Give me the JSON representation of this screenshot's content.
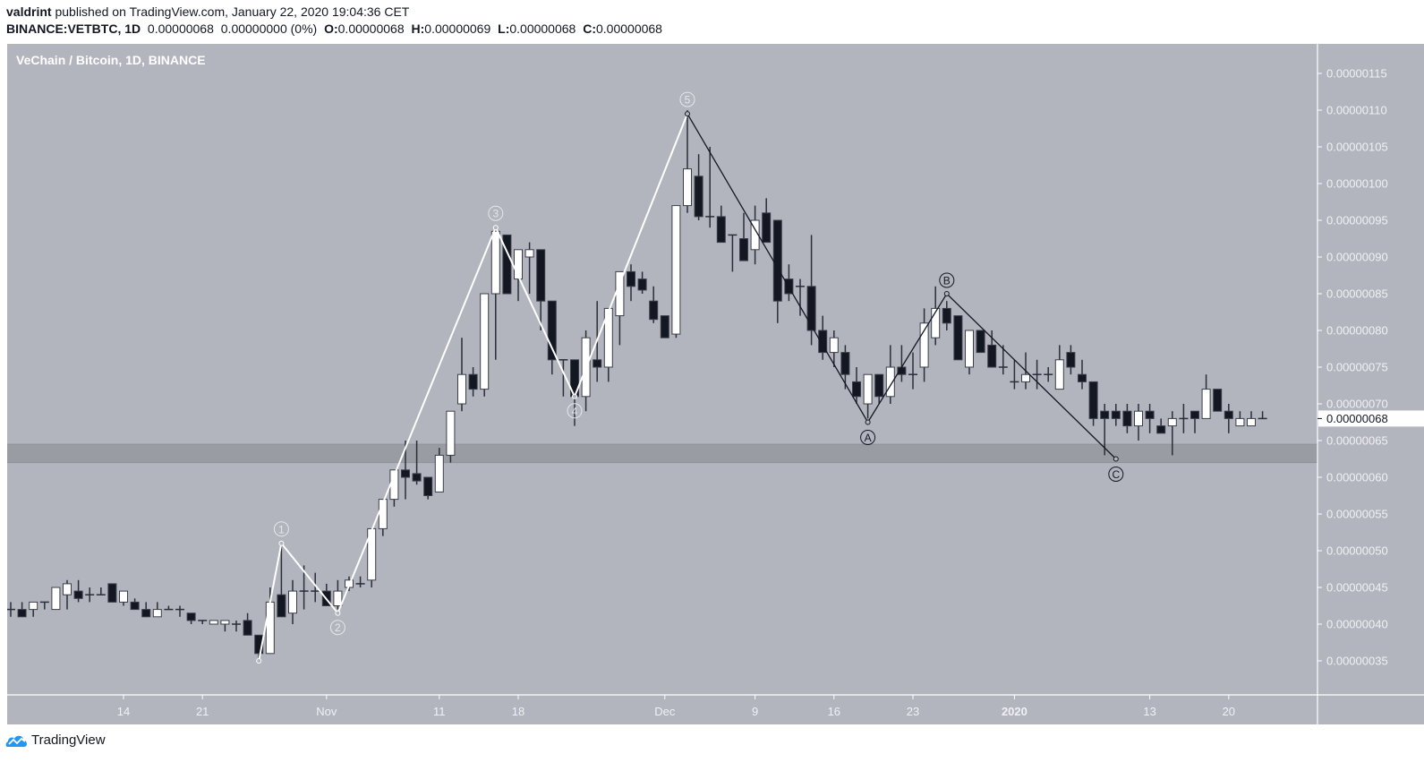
{
  "header": {
    "author": "valdrint",
    "published_text": "published on TradingView.com, January 22, 2020 19:04:36 CET",
    "symbol": "BINANCE:VETBTC, 1D",
    "last": "0.00000068",
    "change": "0.00000000 (0%)",
    "o_label": "O:",
    "o": "0.00000068",
    "h_label": "H:",
    "h": "0.00000069",
    "l_label": "L:",
    "l": "0.00000068",
    "c_label": "C:",
    "c": "0.00000068"
  },
  "chart": {
    "title": "VeChain / Bitcoin, 1D, BINANCE",
    "background": "#b2b5be",
    "up_color": "#ffffff",
    "down_color": "#131722",
    "zone_color": "#9a9ca4",
    "current_price_label": "0.00000068"
  },
  "footer": {
    "brand": "TradingView",
    "logo_color": "#2196f3"
  },
  "chart_data": {
    "type": "candlestick",
    "title": "VeChain / Bitcoin, 1D, BINANCE",
    "symbol": "BINANCE:VETBTC",
    "interval": "1D",
    "price_unit": "1e-8 BTC (satoshi)",
    "y_ticks": [
      "0.00000035",
      "0.00000040",
      "0.00000045",
      "0.00000050",
      "0.00000055",
      "0.00000060",
      "0.00000065",
      "0.00000070",
      "0.00000075",
      "0.00000080",
      "0.00000085",
      "0.00000090",
      "0.00000095",
      "0.00000100",
      "0.00000105",
      "0.00000110",
      "0.00000115"
    ],
    "x_ticks": [
      {
        "label": "14",
        "day": 10
      },
      {
        "label": "21",
        "day": 17
      },
      {
        "label": "Nov",
        "day": 28
      },
      {
        "label": "11",
        "day": 38
      },
      {
        "label": "18",
        "day": 45
      },
      {
        "label": "Dec",
        "day": 58
      },
      {
        "label": "9",
        "day": 66
      },
      {
        "label": "16",
        "day": 73
      },
      {
        "label": "23",
        "day": 80
      },
      {
        "label": "2020",
        "day": 89,
        "bold": true
      },
      {
        "label": "13",
        "day": 101
      },
      {
        "label": "20",
        "day": 108
      }
    ],
    "ylim": [
      31,
      118
    ],
    "support_zone": [
      62,
      64.5
    ],
    "candles": [
      {
        "o": 42,
        "h": 43,
        "l": 41,
        "c": 42
      },
      {
        "o": 42,
        "h": 43,
        "l": 41,
        "c": 41
      },
      {
        "o": 42,
        "h": 43,
        "l": 41,
        "c": 43
      },
      {
        "o": 43,
        "h": 43,
        "l": 42,
        "c": 43
      },
      {
        "o": 42,
        "h": 43,
        "l": 42,
        "c": 45
      },
      {
        "o": 44,
        "h": 46,
        "l": 42,
        "c": 45.5
      },
      {
        "o": 44.5,
        "h": 46,
        "l": 43,
        "c": 43.5
      },
      {
        "o": 44,
        "h": 45,
        "l": 43,
        "c": 44
      },
      {
        "o": 44,
        "h": 45,
        "l": 44,
        "c": 44
      },
      {
        "o": 45.5,
        "h": 45.5,
        "l": 43,
        "c": 43
      },
      {
        "o": 43,
        "h": 44.5,
        "l": 42.5,
        "c": 44.5
      },
      {
        "o": 43,
        "h": 43.5,
        "l": 42,
        "c": 42
      },
      {
        "o": 42,
        "h": 43,
        "l": 41,
        "c": 41
      },
      {
        "o": 41,
        "h": 43,
        "l": 41,
        "c": 42
      },
      {
        "o": 42,
        "h": 42.5,
        "l": 42,
        "c": 42
      },
      {
        "o": 42,
        "h": 42.5,
        "l": 41,
        "c": 42
      },
      {
        "o": 41.5,
        "h": 41.5,
        "l": 40,
        "c": 40.5
      },
      {
        "o": 40.5,
        "h": 40.5,
        "l": 40,
        "c": 40.5
      },
      {
        "o": 40,
        "h": 40.5,
        "l": 40,
        "c": 40.5
      },
      {
        "o": 40,
        "h": 40.5,
        "l": 39,
        "c": 40.5
      },
      {
        "o": 40,
        "h": 40.5,
        "l": 39,
        "c": 40
      },
      {
        "o": 40.5,
        "h": 41.5,
        "l": 39,
        "c": 38.5
      },
      {
        "o": 38.5,
        "h": 38.5,
        "l": 35,
        "c": 36
      },
      {
        "o": 36,
        "h": 45,
        "l": 36,
        "c": 43
      },
      {
        "o": 44,
        "h": 51,
        "l": 41.5,
        "c": 41
      },
      {
        "o": 41.5,
        "h": 46,
        "l": 40,
        "c": 44.5
      },
      {
        "o": 44.5,
        "h": 48,
        "l": 42,
        "c": 44.5
      },
      {
        "o": 44.5,
        "h": 47,
        "l": 43,
        "c": 44.5
      },
      {
        "o": 44.5,
        "h": 45.5,
        "l": 42.5,
        "c": 42.5
      },
      {
        "o": 42.5,
        "h": 46,
        "l": 42,
        "c": 44.5
      },
      {
        "o": 45,
        "h": 46.5,
        "l": 44.5,
        "c": 46
      },
      {
        "o": 45.5,
        "h": 46.5,
        "l": 45,
        "c": 45.5
      },
      {
        "o": 46,
        "h": 51,
        "l": 45,
        "c": 53
      },
      {
        "o": 53,
        "h": 55,
        "l": 52,
        "c": 57
      },
      {
        "o": 57,
        "h": 58,
        "l": 56,
        "c": 61
      },
      {
        "o": 61,
        "h": 65,
        "l": 57,
        "c": 60
      },
      {
        "o": 60.5,
        "h": 65,
        "l": 59,
        "c": 59.5
      },
      {
        "o": 60,
        "h": 59,
        "l": 57,
        "c": 57.5
      },
      {
        "o": 58,
        "h": 64,
        "l": 58,
        "c": 63
      },
      {
        "o": 63,
        "h": 67,
        "l": 62,
        "c": 69
      },
      {
        "o": 70,
        "h": 79,
        "l": 69,
        "c": 74
      },
      {
        "o": 74,
        "h": 75,
        "l": 71,
        "c": 72
      },
      {
        "o": 72,
        "h": 83,
        "l": 71,
        "c": 85
      },
      {
        "o": 85,
        "h": 94,
        "l": 76,
        "c": 93.5
      },
      {
        "o": 93,
        "h": 93,
        "l": 85,
        "c": 85
      },
      {
        "o": 87,
        "h": 89,
        "l": 84,
        "c": 91
      },
      {
        "o": 90,
        "h": 92,
        "l": 85,
        "c": 91
      },
      {
        "o": 91,
        "h": 91,
        "l": 80,
        "c": 84
      },
      {
        "o": 84,
        "h": 84,
        "l": 74,
        "c": 76
      },
      {
        "o": 76,
        "h": 76,
        "l": 71,
        "c": 76
      },
      {
        "o": 76,
        "h": 76,
        "l": 67,
        "c": 71
      },
      {
        "o": 71,
        "h": 80,
        "l": 69,
        "c": 79
      },
      {
        "o": 76,
        "h": 84,
        "l": 73,
        "c": 75
      },
      {
        "o": 75,
        "h": 82,
        "l": 73,
        "c": 83
      },
      {
        "o": 82,
        "h": 88,
        "l": 78,
        "c": 88
      },
      {
        "o": 88,
        "h": 89,
        "l": 84,
        "c": 86
      },
      {
        "o": 87,
        "h": 88,
        "l": 85,
        "c": 85.5
      },
      {
        "o": 84,
        "h": 86,
        "l": 81,
        "c": 81.5
      },
      {
        "o": 82,
        "h": 82,
        "l": 79,
        "c": 79
      },
      {
        "o": 79.5,
        "h": 94,
        "l": 79,
        "c": 97
      },
      {
        "o": 97,
        "h": 110,
        "l": 96,
        "c": 102
      },
      {
        "o": 101,
        "h": 104,
        "l": 95,
        "c": 95.5
      },
      {
        "o": 95.5,
        "h": 105,
        "l": 94,
        "c": 95.5
      },
      {
        "o": 95.5,
        "h": 97,
        "l": 92,
        "c": 92
      },
      {
        "o": 93,
        "h": 93,
        "l": 88,
        "c": 93
      },
      {
        "o": 92.5,
        "h": 96,
        "l": 90,
        "c": 89.5
      },
      {
        "o": 91,
        "h": 97,
        "l": 89,
        "c": 95
      },
      {
        "o": 96,
        "h": 98,
        "l": 92,
        "c": 92
      },
      {
        "o": 95,
        "h": 95,
        "l": 81,
        "c": 84
      },
      {
        "o": 87,
        "h": 89,
        "l": 84,
        "c": 85
      },
      {
        "o": 86,
        "h": 87,
        "l": 82,
        "c": 86
      },
      {
        "o": 86,
        "h": 93,
        "l": 78,
        "c": 80
      },
      {
        "o": 80,
        "h": 82,
        "l": 76,
        "c": 77
      },
      {
        "o": 77,
        "h": 80,
        "l": 75,
        "c": 79
      },
      {
        "o": 77,
        "h": 78,
        "l": 72,
        "c": 74
      },
      {
        "o": 73,
        "h": 75,
        "l": 70,
        "c": 71
      },
      {
        "o": 70,
        "h": 74,
        "l": 68,
        "c": 74
      },
      {
        "o": 74,
        "h": 74,
        "l": 70,
        "c": 71
      },
      {
        "o": 71,
        "h": 78,
        "l": 70,
        "c": 75
      },
      {
        "o": 75,
        "h": 78,
        "l": 73,
        "c": 74
      },
      {
        "o": 74,
        "h": 77,
        "l": 72,
        "c": 74
      },
      {
        "o": 75,
        "h": 83,
        "l": 73,
        "c": 81
      },
      {
        "o": 79,
        "h": 86,
        "l": 78,
        "c": 83
      },
      {
        "o": 83,
        "h": 84,
        "l": 80,
        "c": 81
      },
      {
        "o": 82,
        "h": 82,
        "l": 76,
        "c": 76
      },
      {
        "o": 75,
        "h": 80,
        "l": 74,
        "c": 80
      },
      {
        "o": 80,
        "h": 80,
        "l": 77,
        "c": 77
      },
      {
        "o": 78,
        "h": 80,
        "l": 76,
        "c": 75
      },
      {
        "o": 75,
        "h": 78,
        "l": 74,
        "c": 75
      },
      {
        "o": 73,
        "h": 76,
        "l": 72,
        "c": 73
      },
      {
        "o": 73,
        "h": 77,
        "l": 72,
        "c": 74
      },
      {
        "o": 74,
        "h": 76,
        "l": 72,
        "c": 74
      },
      {
        "o": 74,
        "h": 75,
        "l": 73,
        "c": 74
      },
      {
        "o": 72,
        "h": 78,
        "l": 72,
        "c": 76
      },
      {
        "o": 77,
        "h": 78,
        "l": 74,
        "c": 75
      },
      {
        "o": 74,
        "h": 76,
        "l": 72,
        "c": 73
      },
      {
        "o": 73,
        "h": 73,
        "l": 67,
        "c": 68
      },
      {
        "o": 69,
        "h": 70,
        "l": 63,
        "c": 68
      },
      {
        "o": 69,
        "h": 70,
        "l": 67,
        "c": 68
      },
      {
        "o": 69,
        "h": 70,
        "l": 66,
        "c": 67
      },
      {
        "o": 67,
        "h": 70,
        "l": 65,
        "c": 69
      },
      {
        "o": 69,
        "h": 70,
        "l": 66,
        "c": 68
      },
      {
        "o": 67,
        "h": 68,
        "l": 66,
        "c": 66
      },
      {
        "o": 67,
        "h": 69,
        "l": 63,
        "c": 68
      },
      {
        "o": 68,
        "h": 70,
        "l": 66,
        "c": 68
      },
      {
        "o": 69,
        "h": 69,
        "l": 66,
        "c": 68
      },
      {
        "o": 68,
        "h": 74,
        "l": 68,
        "c": 72
      },
      {
        "o": 72,
        "h": 72,
        "l": 69,
        "c": 69
      },
      {
        "o": 69,
        "h": 70,
        "l": 66,
        "c": 68
      },
      {
        "o": 67,
        "h": 69,
        "l": 67,
        "c": 68
      },
      {
        "o": 67,
        "h": 69,
        "l": 67,
        "c": 68
      },
      {
        "o": 68,
        "h": 69,
        "l": 68,
        "c": 68
      }
    ],
    "annotations": {
      "impulse_wave": {
        "color": "#ffffff",
        "label_color": "#e6e7ea",
        "points": [
          {
            "label": "",
            "day": 22,
            "price": 35
          },
          {
            "label": "1",
            "day": 24,
            "price": 51
          },
          {
            "label": "2",
            "day": 29,
            "price": 41.5
          },
          {
            "label": "3",
            "day": 43,
            "price": 94
          },
          {
            "label": "4",
            "day": 50,
            "price": 71
          },
          {
            "label": "5",
            "day": 60,
            "price": 109.5
          }
        ]
      },
      "corrective_wave": {
        "color": "#131722",
        "label_color": "#131722",
        "points": [
          {
            "label": "",
            "day": 60,
            "price": 109.5
          },
          {
            "label": "A",
            "day": 76,
            "price": 67.5
          },
          {
            "label": "B",
            "day": 83,
            "price": 85
          },
          {
            "label": "C",
            "day": 98,
            "price": 62.5
          }
        ]
      }
    }
  }
}
